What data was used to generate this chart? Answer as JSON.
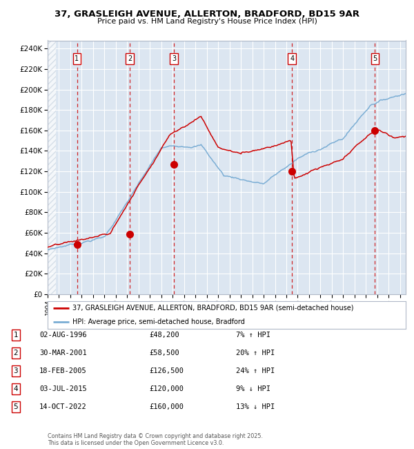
{
  "title_line1": "37, GRASLEIGH AVENUE, ALLERTON, BRADFORD, BD15 9AR",
  "title_line2": "Price paid vs. HM Land Registry's House Price Index (HPI)",
  "legend_label_red": "37, GRASLEIGH AVENUE, ALLERTON, BRADFORD, BD15 9AR (semi-detached house)",
  "legend_label_blue": "HPI: Average price, semi-detached house, Bradford",
  "footer_line1": "Contains HM Land Registry data © Crown copyright and database right 2025.",
  "footer_line2": "This data is licensed under the Open Government Licence v3.0.",
  "ytick_labels": [
    "£0",
    "£20K",
    "£40K",
    "£60K",
    "£80K",
    "£100K",
    "£120K",
    "£140K",
    "£160K",
    "£180K",
    "£200K",
    "£220K",
    "£240K"
  ],
  "ytick_values": [
    0,
    20000,
    40000,
    60000,
    80000,
    100000,
    120000,
    140000,
    160000,
    180000,
    200000,
    220000,
    240000
  ],
  "ylim": [
    0,
    248000
  ],
  "xlim_start": 1994.0,
  "xlim_end": 2025.5,
  "sale_dates": [
    1996.58,
    2001.24,
    2005.12,
    2015.5,
    2022.79
  ],
  "sale_prices": [
    48200,
    58500,
    126500,
    120000,
    160000
  ],
  "sale_labels": [
    "1",
    "2",
    "3",
    "4",
    "5"
  ],
  "table_data": [
    [
      "1",
      "02-AUG-1996",
      "£48,200",
      "7% ↑ HPI"
    ],
    [
      "2",
      "30-MAR-2001",
      "£58,500",
      "20% ↑ HPI"
    ],
    [
      "3",
      "18-FEB-2005",
      "£126,500",
      "24% ↑ HPI"
    ],
    [
      "4",
      "03-JUL-2015",
      "£120,000",
      "9% ↓ HPI"
    ],
    [
      "5",
      "14-OCT-2022",
      "£160,000",
      "13% ↓ HPI"
    ]
  ],
  "red_color": "#cc0000",
  "blue_color": "#7aadd4",
  "bg_chart_color": "#dce6f1",
  "bg_white": "#ffffff",
  "grid_color": "#ffffff",
  "hatch_color": "#c8d4e0"
}
